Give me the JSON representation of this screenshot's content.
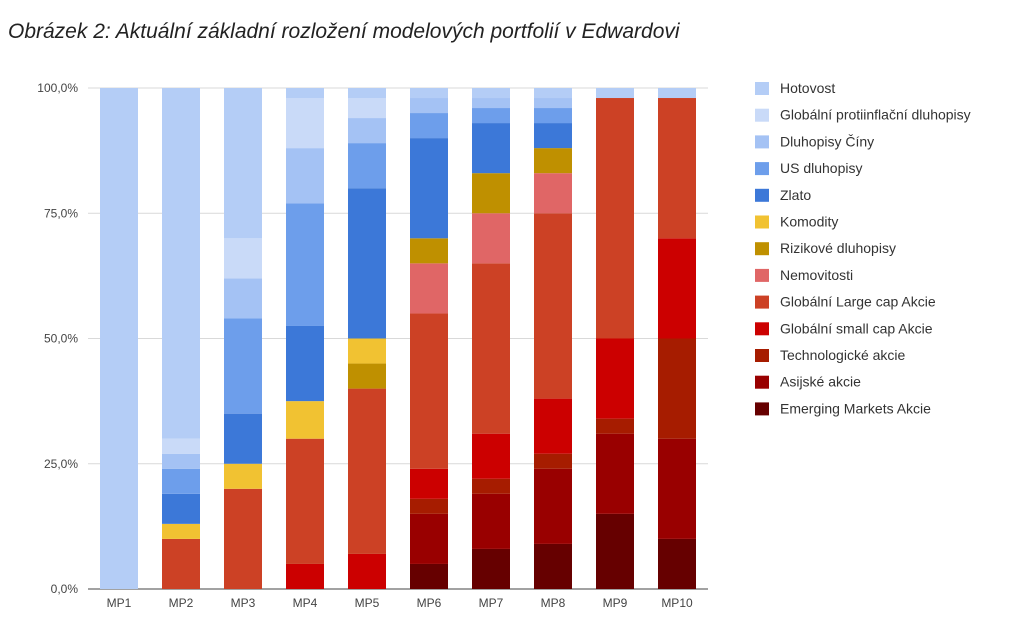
{
  "figure": {
    "title": "Obrázek 2: Aktuální základní rozložení modelových portfolií v Edwardovi"
  },
  "chart_data": {
    "type": "bar",
    "stacked": true,
    "categories": [
      "MP1",
      "MP2",
      "MP3",
      "MP4",
      "MP5",
      "MP6",
      "MP7",
      "MP8",
      "MP9",
      "MP10"
    ],
    "ylim": [
      0,
      100
    ],
    "yticks": [
      "0,0%",
      "25,0%",
      "50,0%",
      "75,0%",
      "100,0%"
    ],
    "grid": true,
    "legend_position": "right",
    "series": [
      {
        "name": "Emerging Markets Akcie",
        "color": "#660000",
        "values": [
          0,
          0,
          0,
          0,
          0,
          5,
          8,
          9,
          15,
          10
        ]
      },
      {
        "name": "Asijské akcie",
        "color": "#990000",
        "values": [
          0,
          0,
          0,
          0,
          0,
          10,
          11,
          15,
          16,
          20
        ]
      },
      {
        "name": "Technologické akcie",
        "color": "#a61c00",
        "values": [
          0,
          0,
          0,
          0,
          0,
          3,
          3,
          3,
          3,
          20
        ]
      },
      {
        "name": "Globální small cap Akcie",
        "color": "#cc0000",
        "values": [
          0,
          0,
          0,
          5,
          7,
          6,
          9,
          11,
          16,
          20
        ]
      },
      {
        "name": "Globální Large cap Akcie",
        "color": "#cc4125",
        "values": [
          0,
          10,
          20,
          25,
          33,
          31,
          34,
          37,
          48,
          28
        ]
      },
      {
        "name": "Nemovitosti",
        "color": "#e06666",
        "values": [
          0,
          0,
          0,
          0,
          0,
          10,
          10,
          8,
          0,
          0
        ]
      },
      {
        "name": "Rizikové dluhopisy",
        "color": "#bf9000",
        "values": [
          0,
          0,
          0,
          0,
          5,
          5,
          8,
          5,
          0,
          0
        ]
      },
      {
        "name": "Komodity",
        "color": "#f1c232",
        "values": [
          0,
          3,
          5,
          7.5,
          5,
          0,
          0,
          0,
          0,
          0
        ]
      },
      {
        "name": "Zlato",
        "color": "#3c78d8",
        "values": [
          0,
          6,
          10,
          15,
          30,
          20,
          10,
          5,
          0,
          0
        ]
      },
      {
        "name": "US dluhopisy",
        "color": "#6d9eeb",
        "values": [
          0,
          5,
          19,
          24.5,
          9,
          5,
          3,
          3,
          0,
          0
        ]
      },
      {
        "name": "Dluhopisy Číny",
        "color": "#a4c2f4",
        "values": [
          0,
          3,
          8,
          11,
          5,
          3,
          2,
          2,
          0,
          0
        ]
      },
      {
        "name": "Globální protiinflační dluhopisy",
        "color": "#c9daf8",
        "values": [
          0,
          3,
          8,
          10,
          4,
          0,
          0,
          0,
          0,
          0
        ]
      },
      {
        "name": "Hotovost",
        "color": "#b4cdf6",
        "values": [
          100,
          70,
          30,
          2,
          2,
          2,
          2,
          2,
          2,
          2
        ]
      }
    ],
    "legend_order": [
      "Hotovost",
      "Globální protiinflační dluhopisy",
      "Dluhopisy Číny",
      "US dluhopisy",
      "Zlato",
      "Komodity",
      "Rizikové dluhopisy",
      "Nemovitosti",
      "Globální Large cap Akcie",
      "Globální small cap Akcie",
      "Technologické akcie",
      "Asijské akcie",
      "Emerging Markets Akcie"
    ]
  }
}
